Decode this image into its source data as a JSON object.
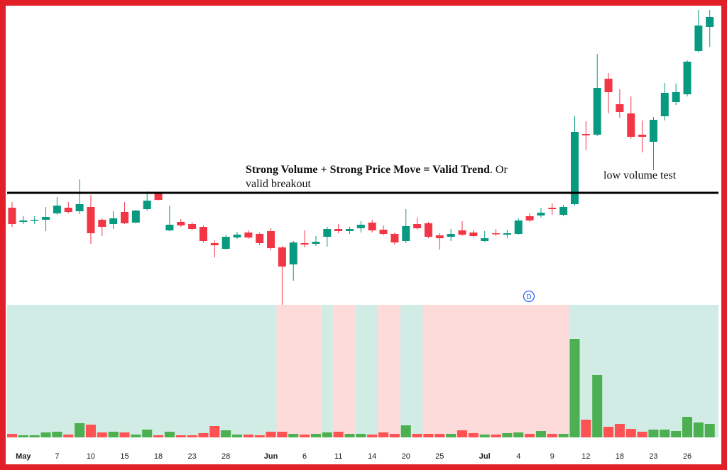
{
  "chart_data": {
    "type": "candlestick",
    "categories": [
      null,
      "May",
      null,
      null,
      "7",
      null,
      null,
      "10",
      null,
      null,
      "15",
      null,
      null,
      "18",
      null,
      null,
      "23",
      null,
      null,
      "28",
      null,
      null,
      null,
      "Jun",
      null,
      null,
      "6",
      null,
      null,
      "11",
      null,
      null,
      "14",
      null,
      null,
      "20",
      null,
      null,
      "25",
      null,
      null,
      null,
      "Jul",
      null,
      null,
      "4",
      null,
      null,
      "9",
      null,
      null,
      "12",
      null,
      null,
      "18",
      null,
      null,
      "23",
      null,
      null,
      "26",
      null,
      null
    ],
    "open": [
      68.5,
      58.5,
      59.5,
      60,
      64.5,
      68.5,
      66,
      69,
      60,
      57,
      65.5,
      58,
      67.5,
      79,
      52.5,
      58.5,
      57,
      55,
      43.5,
      39.5,
      47.5,
      51,
      50,
      52,
      40.5,
      28.5,
      43.5,
      43,
      48,
      53.5,
      52,
      54,
      58,
      53,
      50,
      45,
      57,
      57.5,
      49,
      48,
      52.5,
      51,
      45,
      50.5,
      49.5,
      50,
      62.5,
      63,
      68.5,
      63.5,
      71,
      120.5,
      120,
      159.5,
      141.5,
      135,
      120,
      115,
      133,
      143,
      148.5,
      179,
      196
    ],
    "high": [
      72.5,
      62.5,
      62.5,
      69,
      76,
      72.5,
      88.5,
      77.5,
      61,
      66,
      72.5,
      67,
      80,
      79.5,
      70,
      60.5,
      58.5,
      56,
      45.5,
      49.5,
      51.5,
      52.5,
      51,
      54,
      41.5,
      45,
      52.5,
      48.5,
      55,
      57,
      55,
      59,
      60,
      56,
      51,
      67.5,
      61.5,
      58.5,
      50.5,
      53.5,
      59,
      53,
      52,
      53.5,
      53,
      61,
      64.5,
      68.5,
      71.5,
      70.5,
      133,
      129.5,
      177,
      163.5,
      152,
      147,
      130,
      132.5,
      156.5,
      156,
      172.5,
      208,
      208
    ],
    "low": [
      55,
      57,
      57,
      52,
      63.5,
      64.5,
      64,
      43,
      48.5,
      53.5,
      57,
      57.5,
      66.5,
      73.5,
      52,
      55,
      52.5,
      44,
      33.5,
      39,
      46.5,
      46.5,
      42,
      38.5,
      0,
      17,
      40.5,
      41.5,
      41,
      50.5,
      50,
      51,
      51,
      49,
      42.5,
      43.5,
      53,
      47,
      39,
      45,
      48.5,
      47.5,
      44.5,
      48.5,
      47,
      49.5,
      58.5,
      61.5,
      63.5,
      62.5,
      70,
      109,
      119,
      135,
      132,
      117,
      107.5,
      95,
      130,
      141,
      147,
      178,
      182
    ],
    "close": [
      57,
      59.5,
      60,
      62,
      70,
      65.5,
      71,
      50.5,
      55,
      61,
      57.5,
      66.5,
      73.5,
      74,
      56.5,
      56,
      53.5,
      45,
      42,
      48,
      49.5,
      47.5,
      43.5,
      40,
      27,
      44,
      42.5,
      44.5,
      53.5,
      52,
      53.5,
      56.5,
      52.5,
      50,
      44,
      55.5,
      54,
      48,
      47,
      50,
      49.5,
      48.5,
      47,
      50,
      50.5,
      59.5,
      59.5,
      65,
      67.5,
      69,
      122,
      119.5,
      153,
      150,
      136,
      118.5,
      118.5,
      130.5,
      149.5,
      150,
      171.5,
      197,
      203
    ],
    "volume": [
      5,
      3,
      3,
      7,
      8,
      4,
      20,
      18,
      7,
      8,
      7,
      4,
      11,
      3,
      8,
      3,
      3,
      6,
      16,
      10,
      4,
      4,
      3,
      8,
      8,
      5,
      4,
      5,
      7,
      8,
      5,
      5,
      4,
      7,
      5,
      17,
      5,
      5,
      5,
      5,
      10,
      6,
      4,
      4,
      6,
      7,
      5,
      9,
      5,
      5,
      139,
      25,
      88,
      15,
      19,
      12,
      8,
      11,
      11,
      9,
      29,
      21,
      19
    ],
    "ylim": [
      0,
      210
    ],
    "volume_ylim": [
      0,
      187
    ],
    "up_color": "#089981",
    "down_color": "#f23645",
    "volume_up_color": "#4caf50",
    "volume_down_color": "#ff5252",
    "background": [
      {
        "from": 0,
        "to": 23,
        "color": "#d1ebe5"
      },
      {
        "from": 24,
        "to": 27,
        "color": "#fddbdb"
      },
      {
        "from": 28,
        "to": 28,
        "color": "#d1ebe5"
      },
      {
        "from": 29,
        "to": 30,
        "color": "#fddbdb"
      },
      {
        "from": 31,
        "to": 32,
        "color": "#d1ebe5"
      },
      {
        "from": 33,
        "to": 34,
        "color": "#fddbdb"
      },
      {
        "from": 35,
        "to": 36,
        "color": "#d1ebe5"
      },
      {
        "from": 37,
        "to": 49,
        "color": "#fddbdb"
      },
      {
        "from": 50,
        "to": 62,
        "color": "#d1ebe5"
      }
    ],
    "hline": 79,
    "annotation": {
      "bold": "Strong Volume + Strong Price Move = Valid Trend",
      "rest": ". Or",
      "line2": "valid breakout"
    },
    "note": "low volume test",
    "marker": "D"
  }
}
